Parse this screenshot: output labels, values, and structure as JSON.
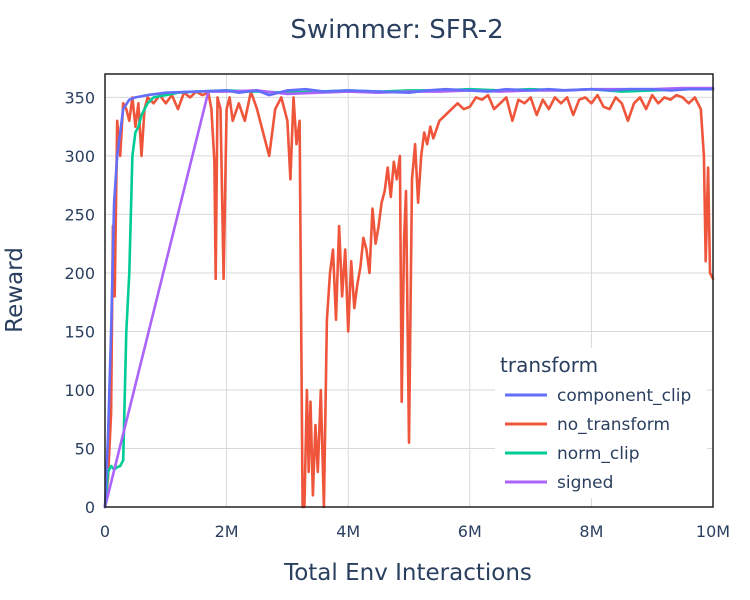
{
  "chart_data": {
    "type": "line",
    "title": "Swimmer: SFR-2",
    "xlabel": "Total Env Interactions",
    "ylabel": "Reward",
    "xlim": [
      0,
      10000000
    ],
    "ylim": [
      0,
      370
    ],
    "x_ticks": [
      0,
      2000000,
      4000000,
      6000000,
      8000000,
      10000000
    ],
    "x_tick_labels": [
      "0",
      "2M",
      "4M",
      "6M",
      "8M",
      "10M"
    ],
    "y_ticks": [
      0,
      50,
      100,
      150,
      200,
      250,
      300,
      350
    ],
    "y_tick_labels": [
      "0",
      "50",
      "100",
      "150",
      "200",
      "250",
      "300",
      "350"
    ],
    "grid": true,
    "legend": {
      "title": "transform",
      "position": "bottom-right"
    },
    "series": [
      {
        "name": "no_transform",
        "color": "#EF553B",
        "points": [
          [
            0,
            0
          ],
          [
            50000,
            25
          ],
          [
            100000,
            80
          ],
          [
            130000,
            240
          ],
          [
            160000,
            180
          ],
          [
            200000,
            330
          ],
          [
            250000,
            300
          ],
          [
            300000,
            345
          ],
          [
            350000,
            340
          ],
          [
            400000,
            330
          ],
          [
            450000,
            350
          ],
          [
            500000,
            325
          ],
          [
            550000,
            345
          ],
          [
            600000,
            300
          ],
          [
            650000,
            340
          ],
          [
            700000,
            350
          ],
          [
            800000,
            345
          ],
          [
            900000,
            352
          ],
          [
            1000000,
            345
          ],
          [
            1100000,
            352
          ],
          [
            1200000,
            340
          ],
          [
            1300000,
            354
          ],
          [
            1400000,
            350
          ],
          [
            1500000,
            355
          ],
          [
            1600000,
            352
          ],
          [
            1700000,
            354
          ],
          [
            1750000,
            340
          ],
          [
            1800000,
            295
          ],
          [
            1820000,
            195
          ],
          [
            1850000,
            350
          ],
          [
            1900000,
            340
          ],
          [
            1950000,
            195
          ],
          [
            2000000,
            340
          ],
          [
            2050000,
            350
          ],
          [
            2100000,
            330
          ],
          [
            2200000,
            345
          ],
          [
            2300000,
            330
          ],
          [
            2400000,
            355
          ],
          [
            2500000,
            340
          ],
          [
            2600000,
            320
          ],
          [
            2700000,
            300
          ],
          [
            2800000,
            340
          ],
          [
            2900000,
            350
          ],
          [
            3000000,
            330
          ],
          [
            3050000,
            280
          ],
          [
            3100000,
            350
          ],
          [
            3150000,
            310
          ],
          [
            3200000,
            330
          ],
          [
            3250000,
            0
          ],
          [
            3280000,
            0
          ],
          [
            3320000,
            100
          ],
          [
            3350000,
            30
          ],
          [
            3380000,
            90
          ],
          [
            3420000,
            10
          ],
          [
            3460000,
            70
          ],
          [
            3500000,
            30
          ],
          [
            3550000,
            100
          ],
          [
            3600000,
            0
          ],
          [
            3650000,
            160
          ],
          [
            3700000,
            200
          ],
          [
            3750000,
            220
          ],
          [
            3800000,
            160
          ],
          [
            3850000,
            240
          ],
          [
            3900000,
            180
          ],
          [
            3950000,
            220
          ],
          [
            4000000,
            150
          ],
          [
            4050000,
            210
          ],
          [
            4100000,
            170
          ],
          [
            4150000,
            190
          ],
          [
            4200000,
            205
          ],
          [
            4250000,
            230
          ],
          [
            4300000,
            220
          ],
          [
            4350000,
            200
          ],
          [
            4400000,
            255
          ],
          [
            4450000,
            225
          ],
          [
            4500000,
            240
          ],
          [
            4550000,
            260
          ],
          [
            4600000,
            270
          ],
          [
            4650000,
            290
          ],
          [
            4700000,
            265
          ],
          [
            4750000,
            295
          ],
          [
            4800000,
            280
          ],
          [
            4850000,
            300
          ],
          [
            4880000,
            90
          ],
          [
            4920000,
            230
          ],
          [
            4950000,
            270
          ],
          [
            5000000,
            55
          ],
          [
            5050000,
            280
          ],
          [
            5100000,
            310
          ],
          [
            5150000,
            260
          ],
          [
            5200000,
            300
          ],
          [
            5250000,
            320
          ],
          [
            5300000,
            310
          ],
          [
            5350000,
            325
          ],
          [
            5400000,
            315
          ],
          [
            5500000,
            330
          ],
          [
            5600000,
            335
          ],
          [
            5700000,
            340
          ],
          [
            5800000,
            345
          ],
          [
            5900000,
            340
          ],
          [
            6000000,
            342
          ],
          [
            6100000,
            350
          ],
          [
            6200000,
            348
          ],
          [
            6300000,
            352
          ],
          [
            6400000,
            340
          ],
          [
            6500000,
            345
          ],
          [
            6600000,
            350
          ],
          [
            6700000,
            330
          ],
          [
            6800000,
            348
          ],
          [
            6900000,
            345
          ],
          [
            7000000,
            350
          ],
          [
            7100000,
            335
          ],
          [
            7200000,
            348
          ],
          [
            7300000,
            340
          ],
          [
            7400000,
            350
          ],
          [
            7500000,
            345
          ],
          [
            7600000,
            350
          ],
          [
            7700000,
            335
          ],
          [
            7800000,
            348
          ],
          [
            7900000,
            350
          ],
          [
            8000000,
            345
          ],
          [
            8100000,
            352
          ],
          [
            8200000,
            342
          ],
          [
            8300000,
            340
          ],
          [
            8400000,
            350
          ],
          [
            8500000,
            345
          ],
          [
            8600000,
            330
          ],
          [
            8700000,
            345
          ],
          [
            8800000,
            350
          ],
          [
            8900000,
            340
          ],
          [
            9000000,
            352
          ],
          [
            9100000,
            345
          ],
          [
            9200000,
            350
          ],
          [
            9300000,
            348
          ],
          [
            9400000,
            352
          ],
          [
            9500000,
            350
          ],
          [
            9600000,
            345
          ],
          [
            9700000,
            350
          ],
          [
            9800000,
            340
          ],
          [
            9850000,
            300
          ],
          [
            9880000,
            210
          ],
          [
            9920000,
            290
          ],
          [
            9950000,
            200
          ],
          [
            10000000,
            195
          ]
        ]
      },
      {
        "name": "norm_clip",
        "color": "#00CC96",
        "points": [
          [
            0,
            0
          ],
          [
            50000,
            30
          ],
          [
            100000,
            35
          ],
          [
            150000,
            32
          ],
          [
            200000,
            34
          ],
          [
            250000,
            35
          ],
          [
            300000,
            40
          ],
          [
            350000,
            150
          ],
          [
            400000,
            200
          ],
          [
            450000,
            300
          ],
          [
            500000,
            320
          ],
          [
            550000,
            325
          ],
          [
            600000,
            335
          ],
          [
            700000,
            345
          ],
          [
            800000,
            350
          ],
          [
            1000000,
            352
          ],
          [
            1200000,
            354
          ],
          [
            1500000,
            355
          ],
          [
            2000000,
            356
          ],
          [
            2500000,
            355
          ],
          [
            3000000,
            354
          ],
          [
            3500000,
            355
          ],
          [
            4000000,
            356
          ],
          [
            4500000,
            355
          ],
          [
            5000000,
            356
          ],
          [
            5500000,
            356
          ],
          [
            6000000,
            357
          ],
          [
            6500000,
            356
          ],
          [
            7000000,
            357
          ],
          [
            7500000,
            356
          ],
          [
            8000000,
            357
          ],
          [
            8500000,
            355
          ],
          [
            9000000,
            356
          ],
          [
            9500000,
            357
          ],
          [
            10000000,
            357
          ]
        ]
      },
      {
        "name": "signed",
        "color": "#AB63FA",
        "points": [
          [
            0,
            0
          ],
          [
            1700000,
            355
          ],
          [
            2000000,
            355
          ],
          [
            2500000,
            356
          ],
          [
            3000000,
            353
          ],
          [
            3500000,
            354
          ],
          [
            4000000,
            355
          ],
          [
            4500000,
            354
          ],
          [
            5000000,
            355
          ],
          [
            5500000,
            355
          ],
          [
            6000000,
            356
          ],
          [
            6500000,
            355
          ],
          [
            7000000,
            356
          ],
          [
            7500000,
            356
          ],
          [
            8000000,
            357
          ],
          [
            8500000,
            357
          ],
          [
            9000000,
            357
          ],
          [
            9500000,
            358
          ],
          [
            10000000,
            358
          ]
        ]
      },
      {
        "name": "component_clip",
        "color": "#636EFA",
        "points": [
          [
            0,
            0
          ],
          [
            50000,
            60
          ],
          [
            100000,
            150
          ],
          [
            150000,
            260
          ],
          [
            200000,
            300
          ],
          [
            250000,
            320
          ],
          [
            300000,
            340
          ],
          [
            400000,
            348
          ],
          [
            500000,
            350
          ],
          [
            700000,
            352
          ],
          [
            1000000,
            354
          ],
          [
            1500000,
            355
          ],
          [
            2000000,
            356
          ],
          [
            2200000,
            354
          ],
          [
            2500000,
            356
          ],
          [
            2700000,
            352
          ],
          [
            3000000,
            356
          ],
          [
            3300000,
            357
          ],
          [
            3600000,
            355
          ],
          [
            4000000,
            356
          ],
          [
            4500000,
            355
          ],
          [
            5000000,
            354
          ],
          [
            5300000,
            356
          ],
          [
            5600000,
            357
          ],
          [
            6000000,
            356
          ],
          [
            6300000,
            355
          ],
          [
            6600000,
            357
          ],
          [
            7000000,
            356
          ],
          [
            7300000,
            357
          ],
          [
            7600000,
            356
          ],
          [
            8000000,
            357
          ],
          [
            8300000,
            356
          ],
          [
            8600000,
            357
          ],
          [
            9000000,
            357
          ],
          [
            9300000,
            356
          ],
          [
            9600000,
            357
          ],
          [
            10000000,
            357
          ]
        ]
      }
    ],
    "legend_order": [
      "component_clip",
      "no_transform",
      "norm_clip",
      "signed"
    ]
  }
}
